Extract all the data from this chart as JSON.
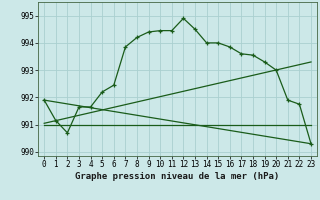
{
  "title": "Graphe pression niveau de la mer (hPa)",
  "bg_color": "#cce8e8",
  "grid_color": "#aad0d0",
  "line_color": "#1a5c1a",
  "xlim": [
    -0.5,
    23.5
  ],
  "ylim": [
    989.85,
    995.5
  ],
  "yticks": [
    990,
    991,
    992,
    993,
    994,
    995
  ],
  "xticks": [
    0,
    1,
    2,
    3,
    4,
    5,
    6,
    7,
    8,
    9,
    10,
    11,
    12,
    13,
    14,
    15,
    16,
    17,
    18,
    19,
    20,
    21,
    22,
    23
  ],
  "series1_x": [
    0,
    1,
    2,
    3,
    4,
    5,
    6,
    7,
    8,
    9,
    10,
    11,
    12,
    13,
    14,
    15,
    16,
    17,
    18,
    19,
    20,
    21,
    22,
    23
  ],
  "series1_y": [
    991.9,
    991.15,
    990.7,
    991.65,
    991.65,
    992.2,
    992.45,
    993.85,
    994.2,
    994.4,
    994.45,
    994.45,
    994.9,
    994.5,
    994.0,
    994.0,
    993.85,
    993.6,
    993.55,
    993.3,
    993.0,
    991.9,
    991.75,
    990.3
  ],
  "series2_x": [
    0,
    23
  ],
  "series2_y": [
    991.9,
    990.3
  ],
  "series3_x": [
    0,
    23
  ],
  "series3_y": [
    991.05,
    993.3
  ],
  "series4_x": [
    0,
    23
  ],
  "series4_y": [
    991.0,
    991.0
  ]
}
